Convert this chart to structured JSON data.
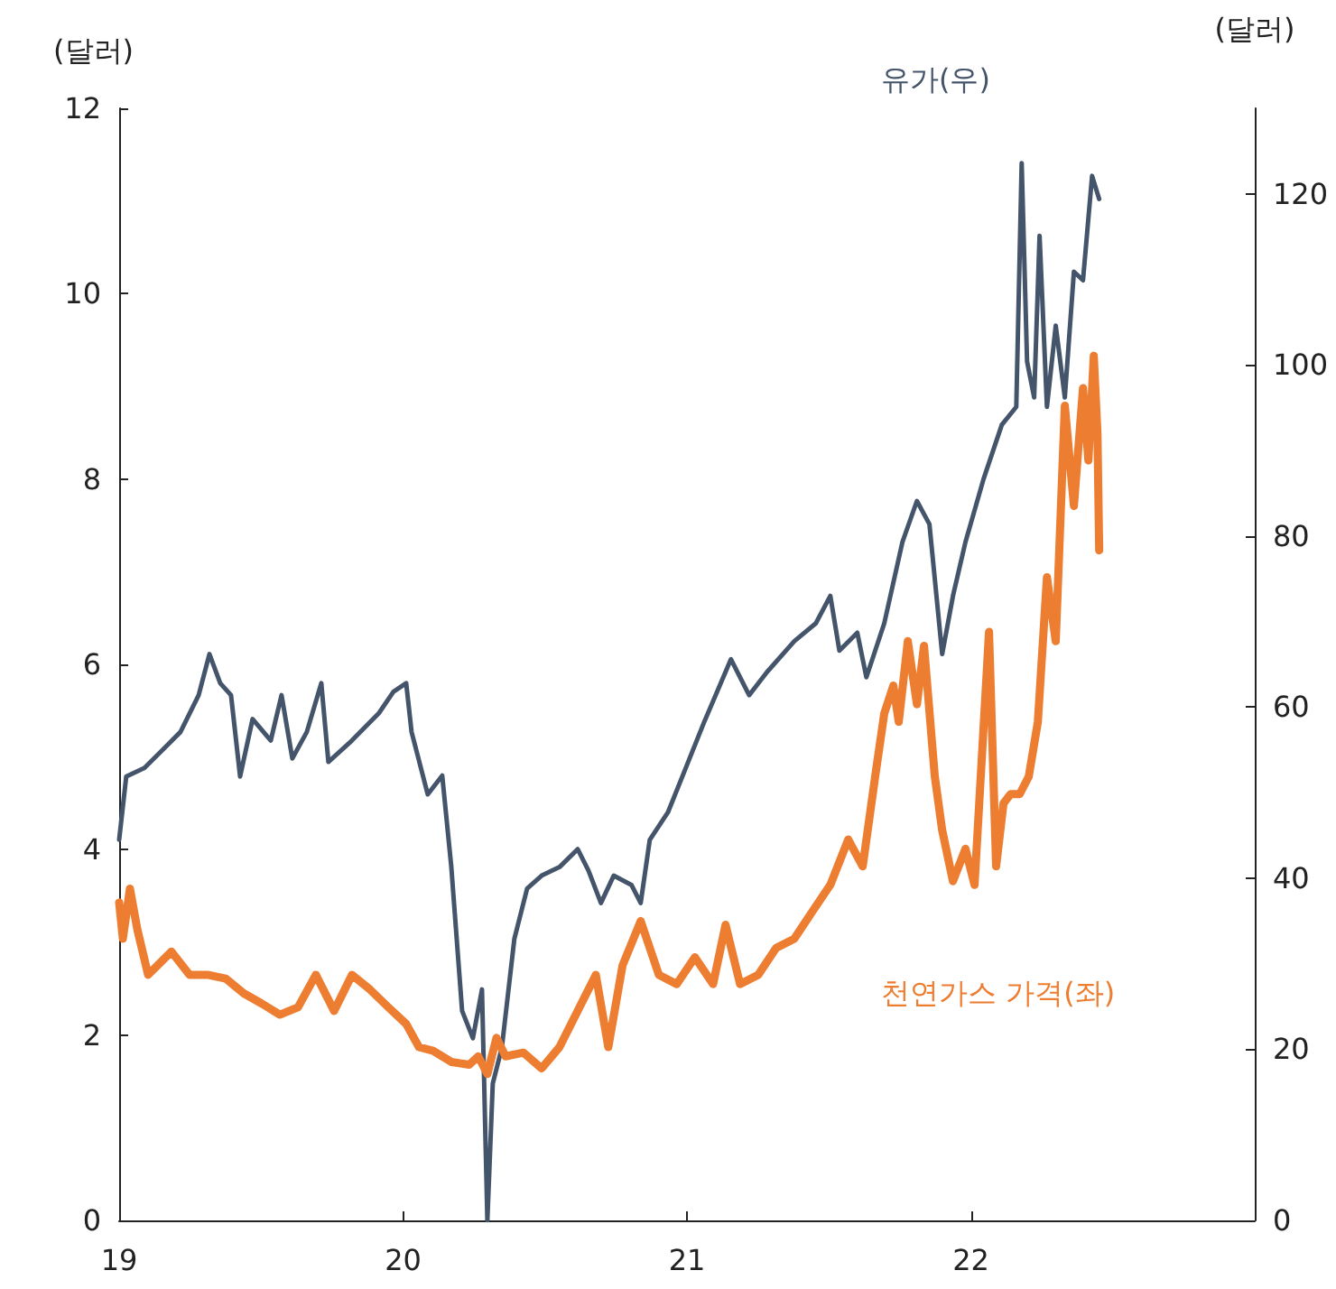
{
  "chart_data": {
    "type": "line",
    "ylabel": "(달러)",
    "y2label": "(달러)",
    "xlim": [
      2019,
      2023
    ],
    "xticks": [
      {
        "value": 2019,
        "label": "19"
      },
      {
        "value": 2020,
        "label": "20"
      },
      {
        "value": 2021,
        "label": "21"
      },
      {
        "value": 2022,
        "label": "22"
      }
    ],
    "ylim": [
      0,
      12
    ],
    "yticks": [
      0,
      2,
      4,
      6,
      8,
      10,
      12
    ],
    "y2lim": [
      0,
      130
    ],
    "y2ticks": [
      0,
      20,
      40,
      60,
      80,
      100,
      120
    ],
    "grid": false,
    "legend": false,
    "marker": "none",
    "line_style": "solid",
    "series": [
      {
        "name": "유가(우)",
        "color": "#44546a",
        "axis": "y2",
        "x": [
          2019.0,
          2019.025,
          2019.089,
          2019.153,
          2019.216,
          2019.28,
          2019.318,
          2019.356,
          2019.394,
          2019.426,
          2019.47,
          2019.534,
          2019.572,
          2019.61,
          2019.661,
          2019.712,
          2019.737,
          2019.82,
          2019.915,
          2019.966,
          2020.011,
          2020.03,
          2020.087,
          2020.138,
          2020.17,
          2020.208,
          2020.246,
          2020.278,
          2020.297,
          2020.316,
          2020.348,
          2020.392,
          2020.437,
          2020.488,
          2020.551,
          2020.615,
          2020.653,
          2020.697,
          2020.742,
          2020.805,
          2020.837,
          2020.869,
          2020.933,
          2020.996,
          2021.06,
          2021.155,
          2021.219,
          2021.282,
          2021.378,
          2021.454,
          2021.505,
          2021.537,
          2021.6,
          2021.632,
          2021.695,
          2021.759,
          2021.81,
          2021.854,
          2021.899,
          2021.937,
          2021.981,
          2022.045,
          2022.109,
          2022.16,
          2022.179,
          2022.198,
          2022.223,
          2022.242,
          2022.268,
          2022.299,
          2022.331,
          2022.363,
          2022.395,
          2022.427,
          2022.452
        ],
        "values": [
          44.5,
          51.9,
          52.9,
          55,
          57.1,
          61.4,
          66.2,
          62.8,
          61.4,
          51.9,
          58.6,
          56.1,
          61.4,
          54,
          57.1,
          62.8,
          53.6,
          56.1,
          59.3,
          61.8,
          62.8,
          57.1,
          49.8,
          52,
          41.3,
          24.5,
          21.3,
          27,
          0,
          16,
          20.2,
          32.9,
          38.8,
          40.3,
          41.3,
          43.4,
          40.9,
          37.1,
          40.3,
          39.2,
          37.1,
          44.5,
          47.7,
          52.9,
          58.2,
          65.6,
          61.4,
          64.1,
          67.7,
          69.8,
          73,
          66.6,
          68.7,
          63.5,
          69.8,
          79.3,
          84.1,
          81.4,
          66.2,
          73,
          79.3,
          86.7,
          93,
          95.1,
          123.6,
          100.4,
          96.2,
          115.1,
          95.1,
          104.6,
          96.2,
          110.9,
          109.9,
          122.1,
          119.4
        ]
      },
      {
        "name": "천연가스 가격(좌)",
        "color": "#ed7d31",
        "x": [
          2019.0,
          2019.013,
          2019.038,
          2019.064,
          2019.102,
          2019.184,
          2019.248,
          2019.311,
          2019.375,
          2019.439,
          2019.502,
          2019.566,
          2019.63,
          2019.693,
          2019.757,
          2019.82,
          2019.884,
          2019.948,
          2020.011,
          2020.056,
          2020.106,
          2020.17,
          2020.233,
          2020.265,
          2020.297,
          2020.329,
          2020.361,
          2020.424,
          2020.488,
          2020.551,
          2020.615,
          2020.679,
          2020.723,
          2020.773,
          2020.837,
          2020.901,
          2020.964,
          2021.028,
          2021.092,
          2021.136,
          2021.187,
          2021.251,
          2021.314,
          2021.378,
          2021.441,
          2021.505,
          2021.568,
          2021.619,
          2021.663,
          2021.695,
          2021.727,
          2021.746,
          2021.778,
          2021.81,
          2021.835,
          2021.873,
          2021.899,
          2021.937,
          2021.981,
          2022.013,
          2022.064,
          2022.089,
          2022.115,
          2022.14,
          2022.172,
          2022.204,
          2022.236,
          2022.268,
          2022.299,
          2022.331,
          2022.363,
          2022.395,
          2022.414,
          2022.433,
          2022.446,
          2022.452
        ],
        "values": [
          3.43,
          3.04,
          3.58,
          3.14,
          2.65,
          2.9,
          2.65,
          2.65,
          2.61,
          2.45,
          2.34,
          2.22,
          2.3,
          2.65,
          2.26,
          2.65,
          2.49,
          2.3,
          2.12,
          1.87,
          1.83,
          1.71,
          1.68,
          1.77,
          1.58,
          1.97,
          1.77,
          1.81,
          1.64,
          1.87,
          2.26,
          2.65,
          1.87,
          2.75,
          3.23,
          2.65,
          2.55,
          2.84,
          2.55,
          3.19,
          2.55,
          2.65,
          2.94,
          3.04,
          3.33,
          3.62,
          4.11,
          3.82,
          4.79,
          5.47,
          5.77,
          5.38,
          6.25,
          5.57,
          6.2,
          4.79,
          4.21,
          3.66,
          4.01,
          3.62,
          6.35,
          3.82,
          4.5,
          4.6,
          4.6,
          4.79,
          5.38,
          6.94,
          6.25,
          8.79,
          7.71,
          8.98,
          8.2,
          9.33,
          8.49,
          7.23
        ]
      }
    ]
  }
}
